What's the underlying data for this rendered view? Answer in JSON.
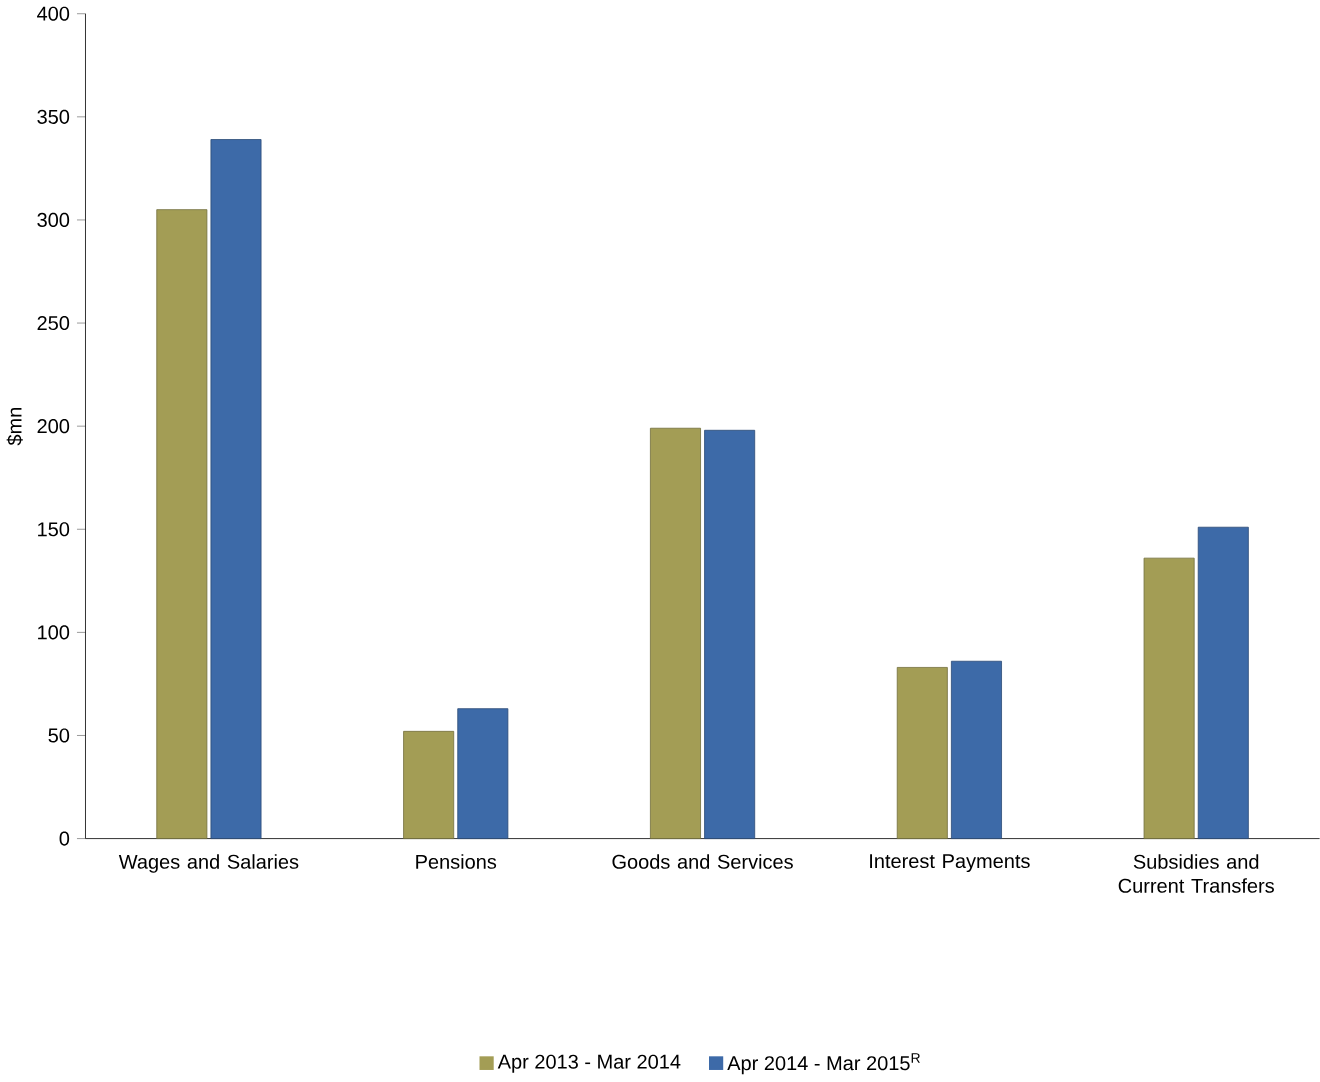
{
  "chart_data": {
    "type": "bar",
    "ylabel": "$mn",
    "categories": [
      "Wages and Salaries",
      "Pensions",
      "Goods and Services",
      "Interest Payments",
      "Subsidies and Current Transfers"
    ],
    "series": [
      {
        "name": "Apr 2013 - Mar 2014",
        "color": "#a39d55",
        "values": [
          305,
          52,
          199,
          83,
          136
        ]
      },
      {
        "name": "Apr 2014 - Mar 2015$^{R}$",
        "color": "#3d6aa8",
        "values": [
          339,
          63,
          198,
          86,
          151
        ]
      }
    ],
    "ylim": [
      0,
      400
    ],
    "yticks": [
      0,
      50,
      100,
      150,
      200,
      250,
      300,
      350,
      400
    ],
    "grid": false,
    "legend": "bottom"
  }
}
